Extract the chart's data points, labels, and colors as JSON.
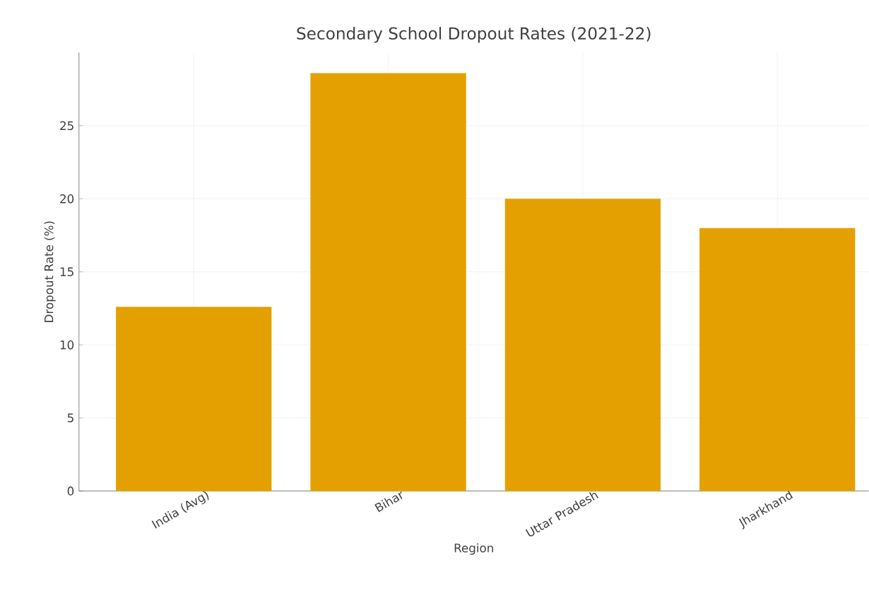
{
  "chart_data": {
    "type": "bar",
    "title": "Secondary School Dropout Rates (2021-22)",
    "xlabel": "Region",
    "ylabel": "Dropout Rate (%)",
    "categories": [
      "India (Avg)",
      "Bihar",
      "Uttar Pradesh",
      "Jharkhand"
    ],
    "values": [
      12.6,
      28.6,
      20.0,
      18.0
    ],
    "color": "#e3a000",
    "ylim": [
      0,
      30
    ],
    "yticks": [
      0,
      5,
      10,
      15,
      20,
      25
    ],
    "grid": true
  }
}
